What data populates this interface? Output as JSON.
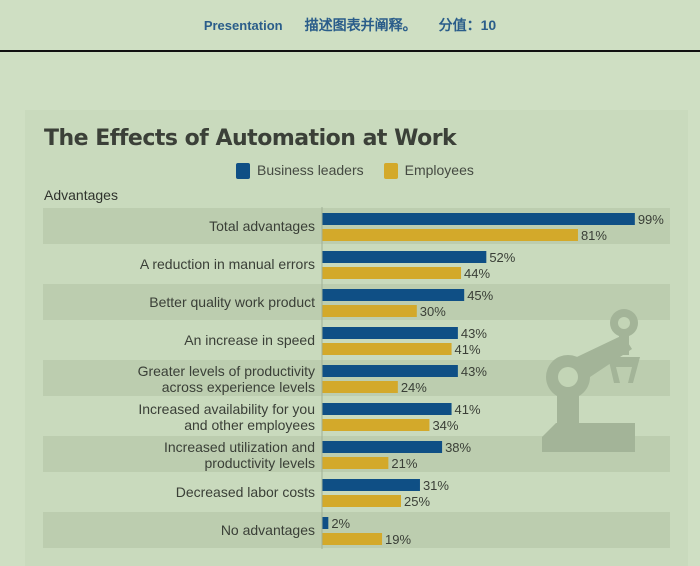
{
  "header": {
    "left": "Presentation",
    "middle": "描述图表并阐释。",
    "right": "分值：10"
  },
  "colors": {
    "business": "#0f4f85",
    "employees": "#d3a92a"
  },
  "chart_data": {
    "type": "bar",
    "title": "The Effects of Automation at Work",
    "section": "Advantages",
    "legend": [
      "Business leaders",
      "Employees"
    ],
    "categories": [
      [
        "Total advantages"
      ],
      [
        "A reduction in manual errors"
      ],
      [
        "Better quality work product"
      ],
      [
        "An increase in speed"
      ],
      [
        "Greater levels of productivity",
        "across experience levels"
      ],
      [
        "Increased availability for you",
        "and other employees"
      ],
      [
        "Increased utilization and",
        "productivity levels"
      ],
      [
        "Decreased labor costs"
      ],
      [
        "No advantages"
      ]
    ],
    "series": [
      {
        "name": "Business leaders",
        "values": [
          99,
          52,
          45,
          43,
          43,
          41,
          38,
          31,
          2
        ]
      },
      {
        "name": "Employees",
        "values": [
          81,
          44,
          30,
          41,
          24,
          34,
          21,
          25,
          19
        ]
      }
    ],
    "unit": "%",
    "xlim": [
      0,
      100
    ]
  }
}
